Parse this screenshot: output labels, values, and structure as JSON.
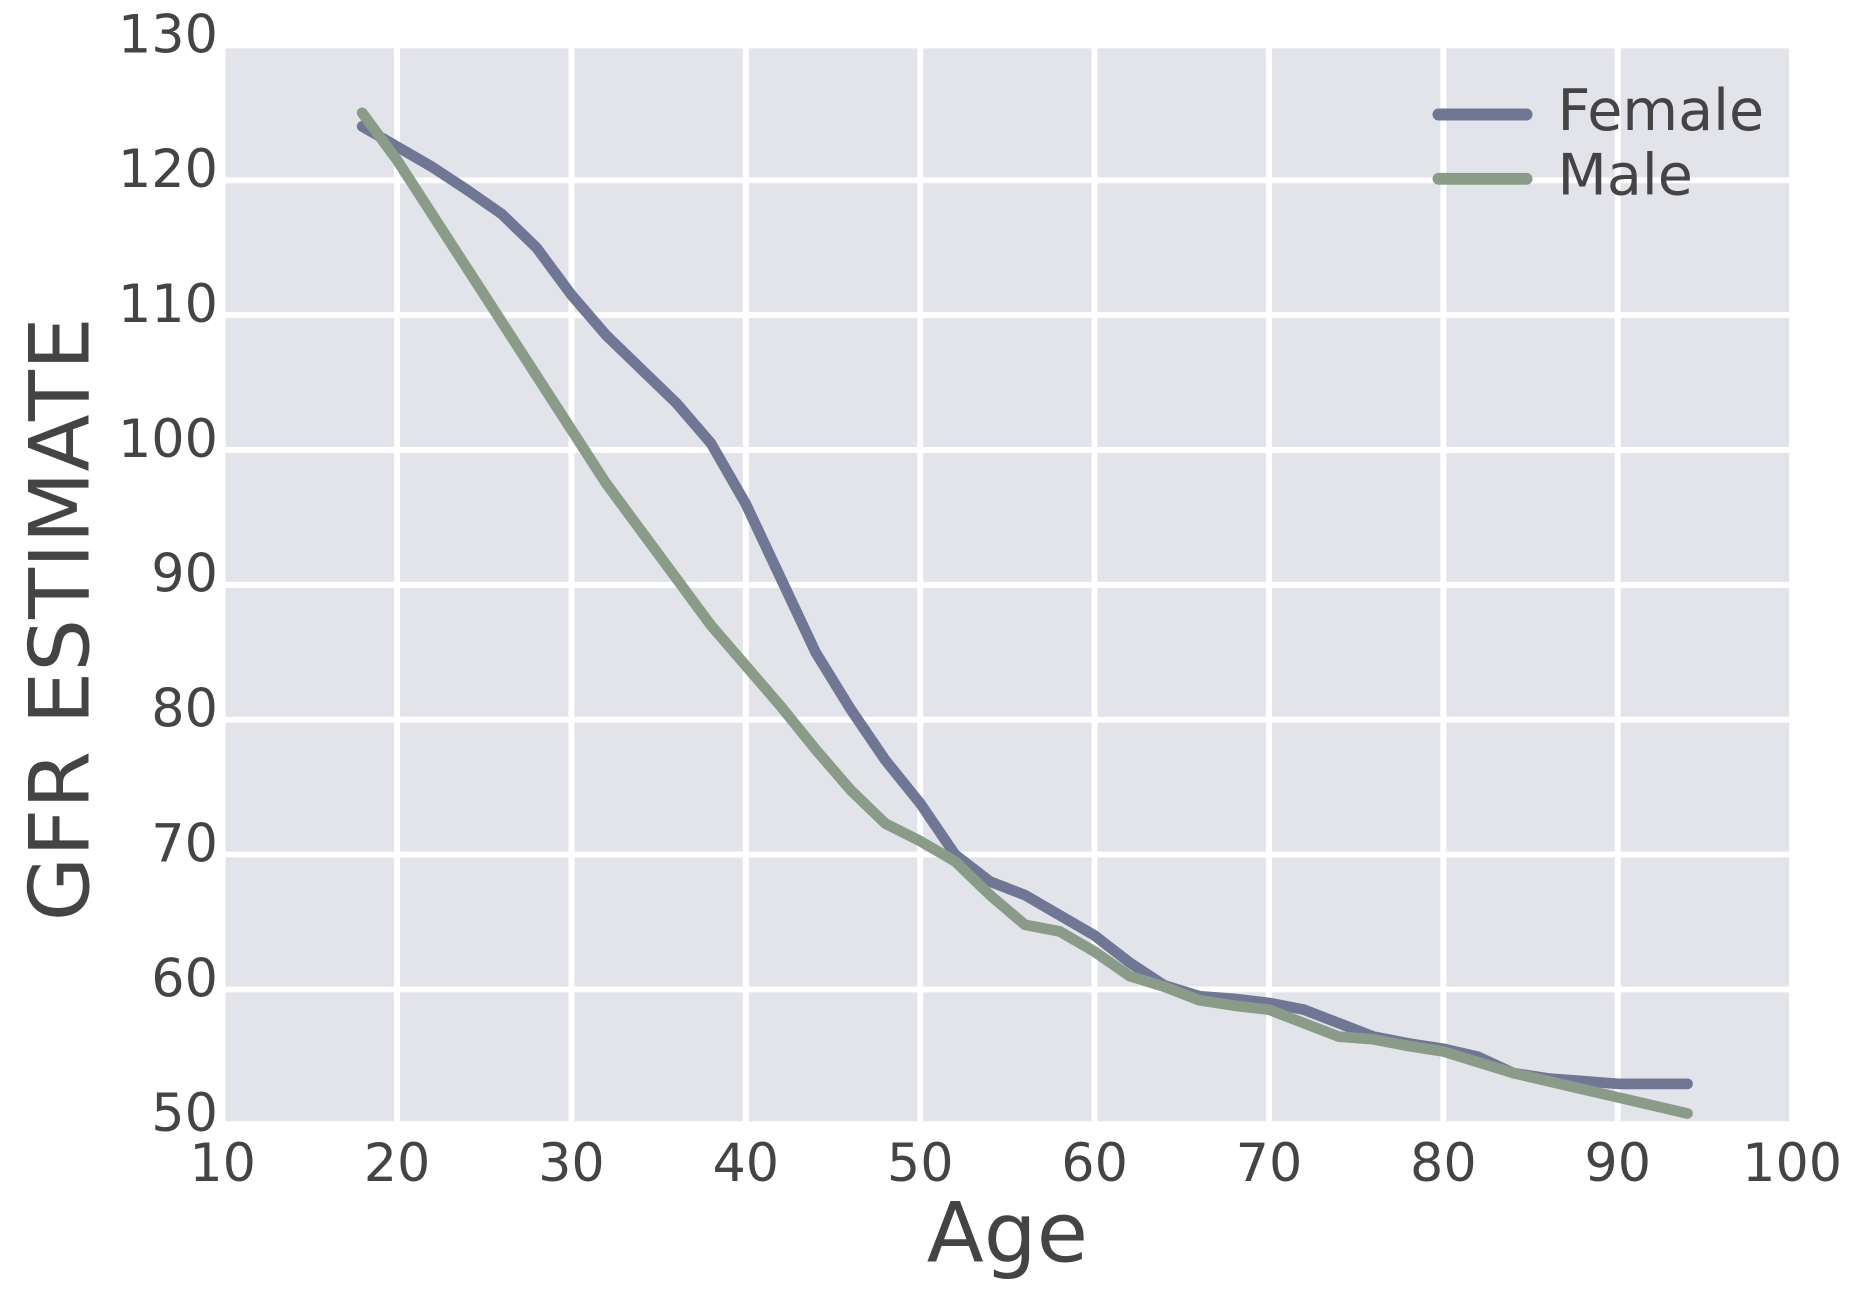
{
  "chart_data": {
    "type": "line",
    "x_label": "Age",
    "y_label": "GFR ESTIMATE",
    "x": [
      18,
      20,
      22,
      24,
      26,
      28,
      30,
      32,
      34,
      36,
      38,
      40,
      42,
      44,
      46,
      48,
      50,
      52,
      54,
      56,
      58,
      60,
      62,
      64,
      66,
      68,
      70,
      72,
      74,
      76,
      78,
      80,
      82,
      84,
      86,
      88,
      90,
      92,
      94
    ],
    "series": [
      {
        "name": "Female",
        "color": "#6f7795",
        "values": [
          124,
          122.5,
          121,
          119.3,
          117.5,
          115,
          111.5,
          108.5,
          106,
          103.5,
          100.5,
          96,
          90.5,
          85,
          80.8,
          77,
          73.8,
          70,
          68,
          67,
          65.5,
          64,
          62,
          60.3,
          59.5,
          59.3,
          59,
          58.5,
          57.5,
          56.5,
          56,
          55.6,
          55,
          53.8,
          53.4,
          53.2,
          53,
          53,
          53
        ]
      },
      {
        "name": "Male",
        "color": "#8a9c88",
        "values": [
          125,
          121.5,
          117.5,
          113.5,
          109.5,
          105.5,
          101.5,
          97.5,
          94,
          90.5,
          87,
          84,
          81,
          77.8,
          74.8,
          72.3,
          71,
          69.5,
          67,
          64.8,
          64.3,
          62.8,
          61,
          60.2,
          59.2,
          58.8,
          58.5,
          57.5,
          56.5,
          56.3,
          55.8,
          55.4,
          54.6,
          53.8,
          53.2,
          52.6,
          52,
          51.4,
          50.8
        ]
      }
    ],
    "xlim": [
      10,
      100
    ],
    "xticks": [
      10,
      20,
      30,
      40,
      50,
      60,
      70,
      80,
      90,
      100
    ],
    "ylim": [
      50,
      130
    ],
    "yticks": [
      50,
      60,
      70,
      80,
      90,
      100,
      110,
      120,
      130
    ],
    "grid": true,
    "legend": "upper right"
  }
}
